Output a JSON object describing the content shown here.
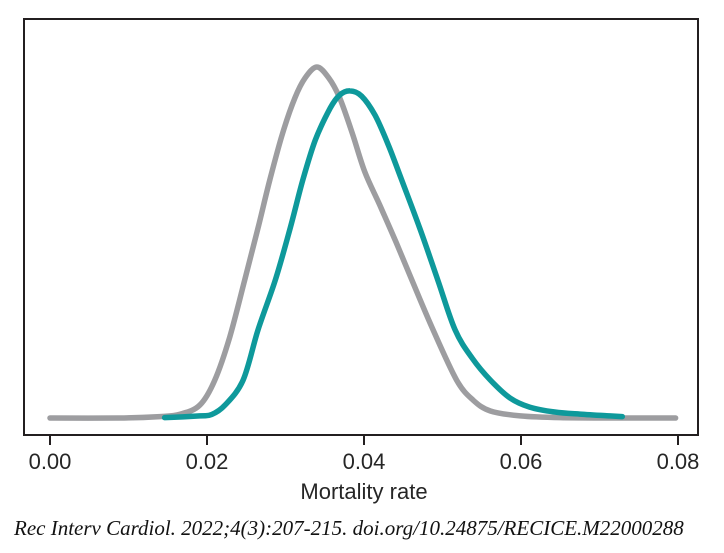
{
  "figure": {
    "citation": "Rec Interv Cardiol. 2022;4(3):207-215. doi.org/10.24875/RECICE.M22000288"
  },
  "colors": {
    "axis": "#231f20",
    "text": "#262626",
    "gray_curve": "#9d9da0",
    "teal_curve": "#0e999b"
  },
  "chart_data": {
    "type": "line",
    "title": "",
    "xlabel": "Mortality rate",
    "ylabel": "",
    "xlim": [
      0,
      0.08
    ],
    "ylim": [
      0,
      1.05
    ],
    "xticks": [
      0,
      0.02,
      0.04,
      0.06,
      0.08
    ],
    "xtick_labels": [
      "0.00",
      "0.02",
      "0.04",
      "0.06",
      "0.08"
    ],
    "grid": false,
    "legend": "none",
    "description": "Two overlapping right-skewed probability density curves of mortality rate; gray density peaks near 0.034, teal density peaks near 0.038 with slightly lower peak height.",
    "series": [
      {
        "name": "gray_density",
        "color": "#9d9da0",
        "peak_x": 0.034,
        "points": [
          [
            0.0,
            0.0
          ],
          [
            0.0089,
            0.0
          ],
          [
            0.014,
            0.004
          ],
          [
            0.0166,
            0.011
          ],
          [
            0.0191,
            0.037
          ],
          [
            0.021,
            0.108
          ],
          [
            0.0229,
            0.231
          ],
          [
            0.0248,
            0.393
          ],
          [
            0.0265,
            0.541
          ],
          [
            0.028,
            0.678
          ],
          [
            0.0296,
            0.809
          ],
          [
            0.0312,
            0.912
          ],
          [
            0.0325,
            0.969
          ],
          [
            0.034,
            1.0
          ],
          [
            0.0355,
            0.969
          ],
          [
            0.0369,
            0.912
          ],
          [
            0.0385,
            0.812
          ],
          [
            0.0401,
            0.701
          ],
          [
            0.042,
            0.607
          ],
          [
            0.0441,
            0.5
          ],
          [
            0.0461,
            0.393
          ],
          [
            0.0488,
            0.251
          ],
          [
            0.0518,
            0.108
          ],
          [
            0.0539,
            0.051
          ],
          [
            0.0561,
            0.02
          ],
          [
            0.0599,
            0.006
          ],
          [
            0.065,
            0.001
          ],
          [
            0.0726,
            0.0
          ],
          [
            0.0797,
            0.0
          ]
        ]
      },
      {
        "name": "teal_density",
        "color": "#0e999b",
        "peak_x": 0.038,
        "points": [
          [
            0.0146,
            0.001
          ],
          [
            0.0191,
            0.006
          ],
          [
            0.0206,
            0.01
          ],
          [
            0.0223,
            0.037
          ],
          [
            0.0246,
            0.108
          ],
          [
            0.0265,
            0.251
          ],
          [
            0.0287,
            0.393
          ],
          [
            0.0306,
            0.541
          ],
          [
            0.0322,
            0.678
          ],
          [
            0.0338,
            0.792
          ],
          [
            0.0357,
            0.883
          ],
          [
            0.0369,
            0.92
          ],
          [
            0.0382,
            0.932
          ],
          [
            0.0397,
            0.917
          ],
          [
            0.0414,
            0.863
          ],
          [
            0.0431,
            0.778
          ],
          [
            0.0448,
            0.678
          ],
          [
            0.0471,
            0.541
          ],
          [
            0.0494,
            0.393
          ],
          [
            0.0516,
            0.251
          ],
          [
            0.0538,
            0.17
          ],
          [
            0.0561,
            0.108
          ],
          [
            0.0586,
            0.057
          ],
          [
            0.0611,
            0.031
          ],
          [
            0.0643,
            0.017
          ],
          [
            0.0675,
            0.011
          ],
          [
            0.0713,
            0.006
          ],
          [
            0.0729,
            0.004
          ]
        ]
      }
    ]
  }
}
